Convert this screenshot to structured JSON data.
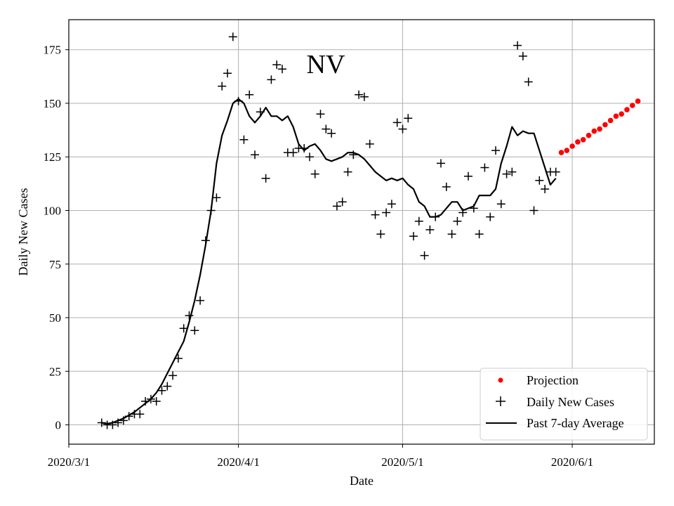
{
  "chart_data": {
    "type": "scatter",
    "title": "NV",
    "xlabel": "Date",
    "ylabel": "Daily New Cases",
    "xlim_day": [
      0,
      107
    ],
    "ylim": [
      -9,
      189
    ],
    "grid": true,
    "legend_position": "lower-right",
    "x_ticks": [
      {
        "day": 0,
        "label": "2020/3/1"
      },
      {
        "day": 31,
        "label": "2020/4/1"
      },
      {
        "day": 61,
        "label": "2020/5/1"
      },
      {
        "day": 92,
        "label": "2020/6/1"
      }
    ],
    "y_ticks": [
      0,
      25,
      50,
      75,
      100,
      125,
      150,
      175
    ],
    "series": [
      {
        "name": "Daily New Cases",
        "style": "plus-marker",
        "color": "#000000",
        "points": [
          [
            6,
            1
          ],
          [
            7,
            0
          ],
          [
            8,
            0
          ],
          [
            9,
            1
          ],
          [
            10,
            2
          ],
          [
            11,
            4
          ],
          [
            12,
            5
          ],
          [
            13,
            5
          ],
          [
            14,
            11
          ],
          [
            15,
            12
          ],
          [
            16,
            11
          ],
          [
            17,
            16
          ],
          [
            18,
            18
          ],
          [
            19,
            23
          ],
          [
            20,
            31
          ],
          [
            21,
            45
          ],
          [
            22,
            51
          ],
          [
            23,
            44
          ],
          [
            24,
            58
          ],
          [
            25,
            86
          ],
          [
            26,
            100
          ],
          [
            27,
            106
          ],
          [
            28,
            158
          ],
          [
            29,
            164
          ],
          [
            30,
            181
          ],
          [
            31,
            151
          ],
          [
            32,
            133
          ],
          [
            33,
            154
          ],
          [
            34,
            126
          ],
          [
            35,
            146
          ],
          [
            36,
            115
          ],
          [
            37,
            161
          ],
          [
            38,
            168
          ],
          [
            39,
            166
          ],
          [
            40,
            127
          ],
          [
            41,
            127
          ],
          [
            42,
            129
          ],
          [
            43,
            129
          ],
          [
            44,
            125
          ],
          [
            45,
            117
          ],
          [
            46,
            145
          ],
          [
            47,
            138
          ],
          [
            48,
            136
          ],
          [
            49,
            102
          ],
          [
            50,
            104
          ],
          [
            51,
            118
          ],
          [
            52,
            126
          ],
          [
            53,
            154
          ],
          [
            54,
            153
          ],
          [
            55,
            131
          ],
          [
            56,
            98
          ],
          [
            57,
            89
          ],
          [
            58,
            99
          ],
          [
            59,
            103
          ],
          [
            60,
            141
          ],
          [
            61,
            138
          ],
          [
            62,
            143
          ],
          [
            63,
            88
          ],
          [
            64,
            95
          ],
          [
            65,
            79
          ],
          [
            66,
            91
          ],
          [
            67,
            97
          ],
          [
            68,
            122
          ],
          [
            69,
            111
          ],
          [
            70,
            89
          ],
          [
            71,
            95
          ],
          [
            72,
            99
          ],
          [
            73,
            116
          ],
          [
            74,
            101
          ],
          [
            75,
            89
          ],
          [
            76,
            120
          ],
          [
            77,
            97
          ],
          [
            78,
            128
          ],
          [
            79,
            103
          ],
          [
            80,
            117
          ],
          [
            81,
            118
          ],
          [
            82,
            177
          ],
          [
            83,
            172
          ],
          [
            84,
            160
          ],
          [
            85,
            100
          ],
          [
            86,
            114
          ],
          [
            87,
            110
          ],
          [
            88,
            118
          ],
          [
            89,
            118
          ]
        ]
      },
      {
        "name": "Past 7-day Average",
        "style": "line",
        "color": "#000000",
        "points": [
          [
            6,
            1
          ],
          [
            7,
            0.5
          ],
          [
            8,
            1
          ],
          [
            9,
            2
          ],
          [
            10,
            3
          ],
          [
            11,
            4.5
          ],
          [
            12,
            6
          ],
          [
            13,
            8
          ],
          [
            14,
            10
          ],
          [
            15,
            12
          ],
          [
            16,
            15
          ],
          [
            17,
            19
          ],
          [
            18,
            24
          ],
          [
            19,
            29
          ],
          [
            20,
            34
          ],
          [
            21,
            39
          ],
          [
            22,
            48
          ],
          [
            23,
            58
          ],
          [
            24,
            70
          ],
          [
            25,
            84
          ],
          [
            26,
            100
          ],
          [
            27,
            122
          ],
          [
            28,
            135
          ],
          [
            29,
            142
          ],
          [
            30,
            150
          ],
          [
            31,
            152
          ],
          [
            32,
            150
          ],
          [
            33,
            144
          ],
          [
            34,
            141
          ],
          [
            35,
            144
          ],
          [
            36,
            148
          ],
          [
            37,
            144
          ],
          [
            38,
            144
          ],
          [
            39,
            142
          ],
          [
            40,
            144
          ],
          [
            41,
            139
          ],
          [
            42,
            131
          ],
          [
            43,
            128
          ],
          [
            44,
            130
          ],
          [
            45,
            131
          ],
          [
            46,
            128
          ],
          [
            47,
            124
          ],
          [
            48,
            123
          ],
          [
            49,
            124
          ],
          [
            50,
            125
          ],
          [
            51,
            127
          ],
          [
            52,
            127
          ],
          [
            53,
            126
          ],
          [
            54,
            124
          ],
          [
            55,
            121
          ],
          [
            56,
            118
          ],
          [
            57,
            116
          ],
          [
            58,
            114
          ],
          [
            59,
            115
          ],
          [
            60,
            114
          ],
          [
            61,
            115
          ],
          [
            62,
            112
          ],
          [
            63,
            110
          ],
          [
            64,
            104
          ],
          [
            65,
            102
          ],
          [
            66,
            97
          ],
          [
            67,
            97
          ],
          [
            68,
            98
          ],
          [
            69,
            101
          ],
          [
            70,
            104
          ],
          [
            71,
            104
          ],
          [
            72,
            100
          ],
          [
            73,
            101
          ],
          [
            74,
            102
          ],
          [
            75,
            107
          ],
          [
            76,
            107
          ],
          [
            77,
            107
          ],
          [
            78,
            110
          ],
          [
            79,
            122
          ],
          [
            80,
            130
          ],
          [
            81,
            139
          ],
          [
            82,
            135
          ],
          [
            83,
            137
          ],
          [
            84,
            136
          ],
          [
            85,
            136
          ],
          [
            86,
            128
          ],
          [
            87,
            120
          ],
          [
            88,
            112
          ],
          [
            89,
            115
          ]
        ]
      },
      {
        "name": "Projection",
        "style": "dot",
        "color": "#ff0000",
        "points": [
          [
            90,
            127
          ],
          [
            91,
            128
          ],
          [
            92,
            130
          ],
          [
            93,
            132
          ],
          [
            94,
            133
          ],
          [
            95,
            135
          ],
          [
            96,
            137
          ],
          [
            97,
            138
          ],
          [
            98,
            140
          ],
          [
            99,
            142
          ],
          [
            100,
            144
          ],
          [
            101,
            145
          ],
          [
            102,
            147
          ],
          [
            103,
            149
          ],
          [
            104,
            151
          ]
        ]
      }
    ],
    "legend": [
      {
        "label": "Projection",
        "marker": "dot",
        "color": "#ff0000"
      },
      {
        "label": "Daily New Cases",
        "marker": "plus",
        "color": "#000000"
      },
      {
        "label": "Past 7-day Average",
        "marker": "line",
        "color": "#000000"
      }
    ]
  }
}
